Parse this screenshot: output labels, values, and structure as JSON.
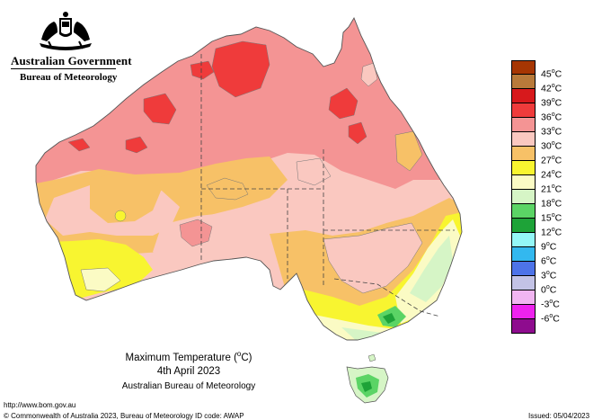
{
  "header": {
    "government": "Australian Government",
    "agency": "Bureau of Meteorology"
  },
  "caption": {
    "title_prefix": "Maximum Temperature (",
    "title_unit": "o",
    "title_suffix": "C)",
    "date": "4th April 2023",
    "source": "Australian Bureau of Meteorology"
  },
  "footer": {
    "url": "http://www.bom.gov.au",
    "copyright": "© Commonwealth of Australia 2023, Bureau of Meteorology",
    "id_code": "ID code: AWAP",
    "issued": "Issued: 05/04/2023"
  },
  "legend": [
    {
      "label": "45",
      "unit": "o",
      "suffix": "C",
      "color": "#a63603"
    },
    {
      "label": "42",
      "unit": "o",
      "suffix": "C",
      "color": "#b87a3a"
    },
    {
      "label": "39",
      "unit": "o",
      "suffix": "C",
      "color": "#d7191c"
    },
    {
      "label": "36",
      "unit": "o",
      "suffix": "C",
      "color": "#ef3b3b"
    },
    {
      "label": "33",
      "unit": "o",
      "suffix": "C",
      "color": "#f49494"
    },
    {
      "label": "30",
      "unit": "o",
      "suffix": "C",
      "color": "#fac8c0"
    },
    {
      "label": "27",
      "unit": "o",
      "suffix": "C",
      "color": "#f7c167"
    },
    {
      "label": "24",
      "unit": "o",
      "suffix": "C",
      "color": "#f8f530"
    },
    {
      "label": "21",
      "unit": "o",
      "suffix": "C",
      "color": "#fbfbc4"
    },
    {
      "label": "18",
      "unit": "o",
      "suffix": "C",
      "color": "#d6f5c6"
    },
    {
      "label": "15",
      "unit": "o",
      "suffix": "C",
      "color": "#5bd465"
    },
    {
      "label": "12",
      "unit": "o",
      "suffix": "C",
      "color": "#1ea338"
    },
    {
      "label": "9",
      "unit": "o",
      "suffix": "C",
      "color": "#94f7f7"
    },
    {
      "label": "6",
      "unit": "o",
      "suffix": "C",
      "color": "#33b8ef"
    },
    {
      "label": "3",
      "unit": "o",
      "suffix": "C",
      "color": "#4d73e8"
    },
    {
      "label": "0",
      "unit": "o",
      "suffix": "C",
      "color": "#c3c3e6"
    },
    {
      "label": "-3",
      "unit": "o",
      "suffix": "C",
      "color": "#f1b5f1"
    },
    {
      "label": "-6",
      "unit": "o",
      "suffix": "C",
      "color": "#ee22ee"
    },
    {
      "label": "",
      "unit": "",
      "suffix": "",
      "color": "#8e0c8e"
    }
  ]
}
